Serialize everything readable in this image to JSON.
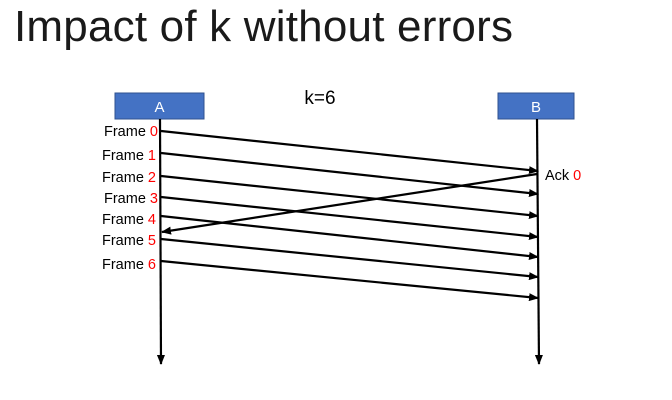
{
  "slide": {
    "title": "Impact of k without errors"
  },
  "diagram": {
    "window_label": "k=6",
    "sender": {
      "label": "A"
    },
    "receiver": {
      "label": "B"
    },
    "frame_word": "Frame",
    "frames": [
      "0",
      "1",
      "2",
      "3",
      "4",
      "5",
      "6"
    ],
    "ack": {
      "word": "Ack",
      "number": "0"
    },
    "colors": {
      "node_fill": "#4472C4",
      "node_stroke": "#2F528F",
      "number_color": "#FF0000",
      "line_color": "#000000",
      "text_color": "#000000"
    },
    "icons": {
      "arrowhead": "arrowhead-icon"
    }
  }
}
